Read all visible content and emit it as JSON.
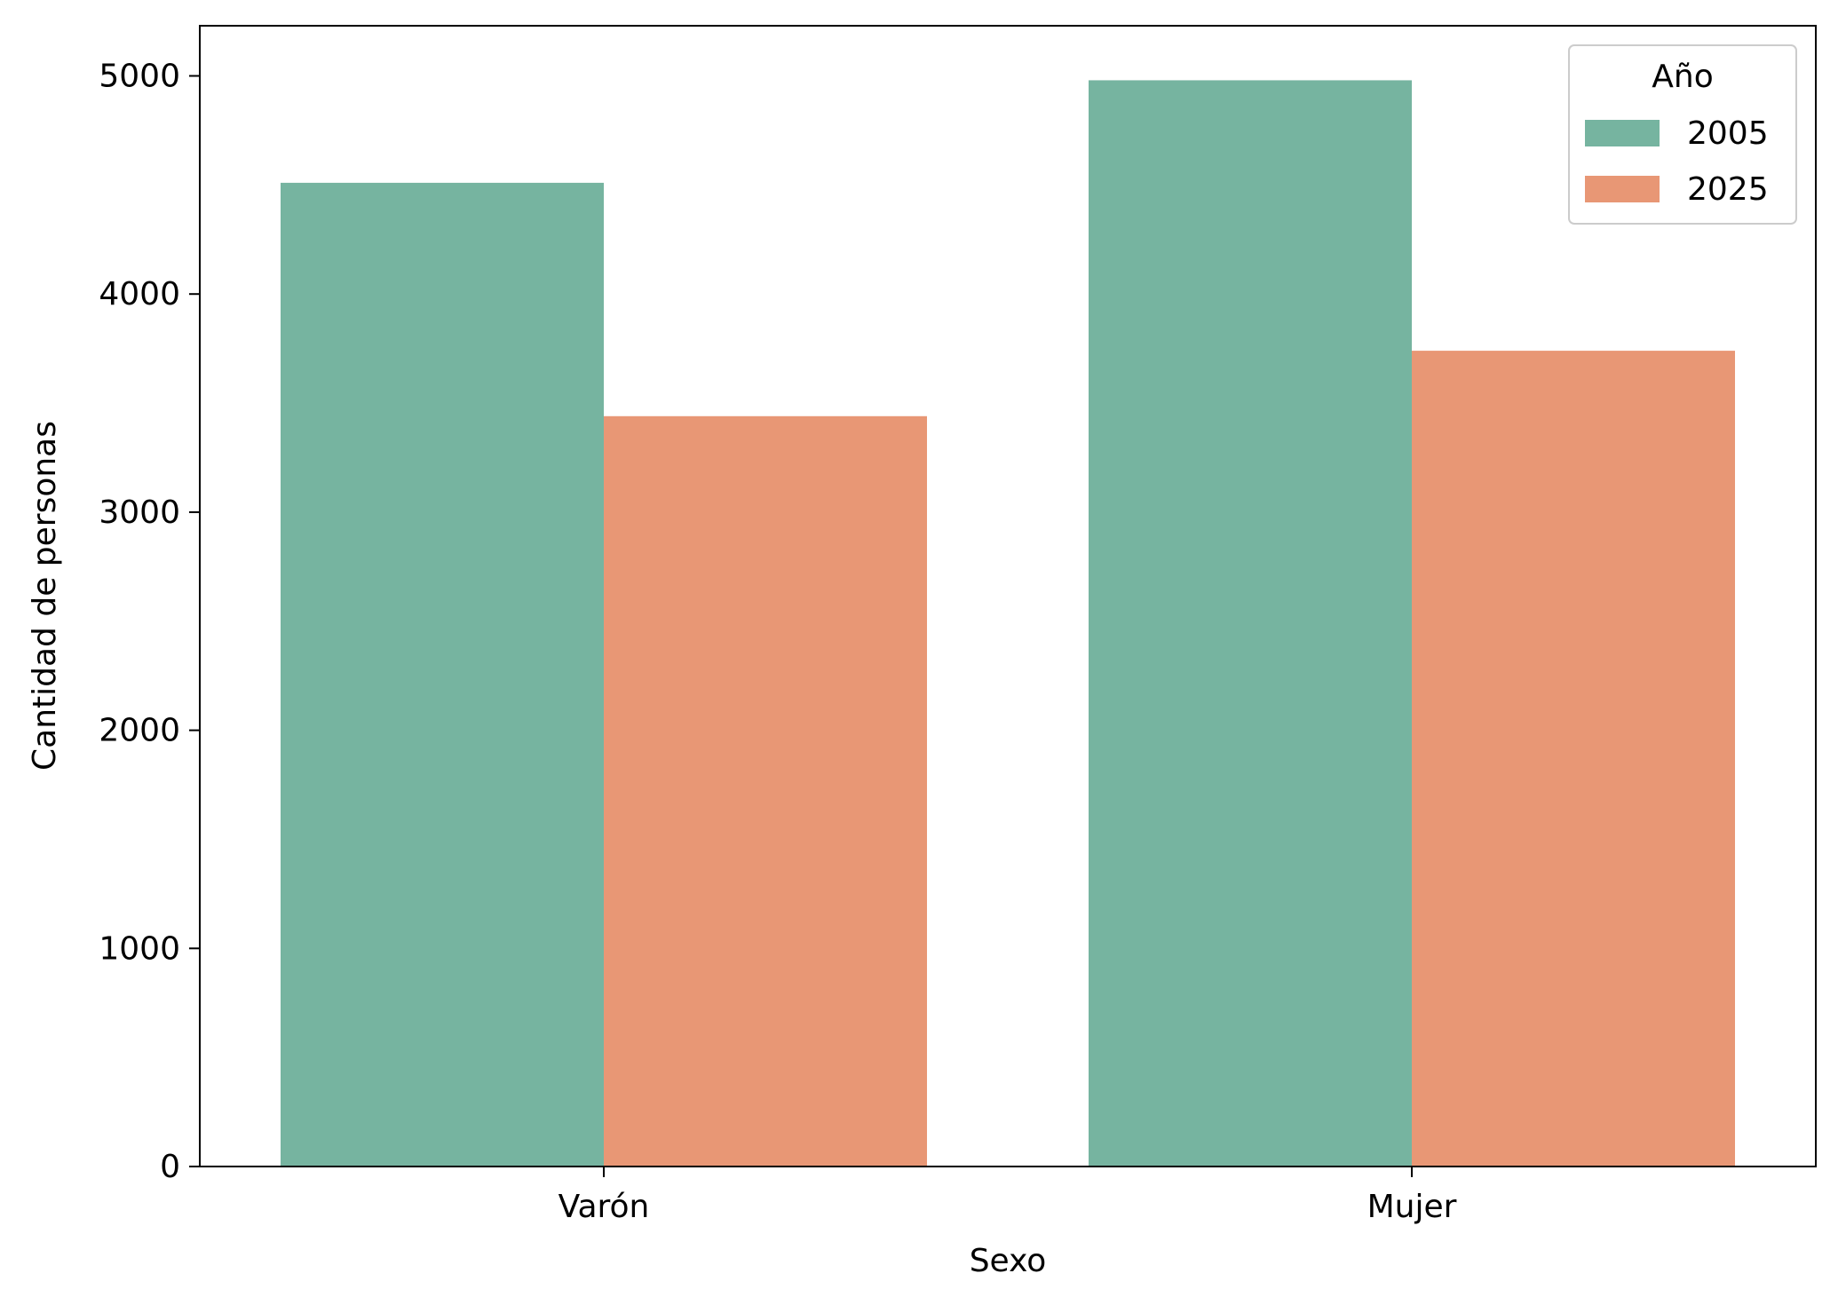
{
  "chart_data": {
    "type": "bar",
    "title": "",
    "xlabel": "Sexo",
    "ylabel": "Cantidad de personas",
    "categories": [
      "Varón",
      "Mujer"
    ],
    "series": [
      {
        "name": "2005",
        "color": "#76b4a0",
        "values": [
          4510,
          4980
        ]
      },
      {
        "name": "2025",
        "color": "#e89775",
        "values": [
          3440,
          3740
        ]
      }
    ],
    "ylim": [
      0,
      5230
    ],
    "yticks": [
      0,
      1000,
      2000,
      3000,
      4000,
      5000
    ],
    "grid": false,
    "legend": {
      "title": "Año",
      "placement": "top-right"
    }
  }
}
